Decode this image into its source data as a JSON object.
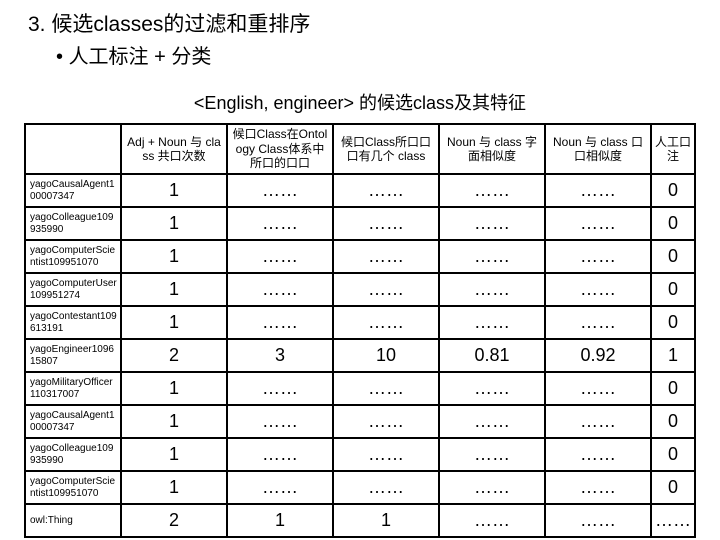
{
  "heading": "3. 候选classes的过滤和重排序",
  "bullet": "人工标注  + 分类",
  "subtitle": "<English, engineer> 的候选class及其特征",
  "columns": [
    "",
    "Adj + Noun 与 class 共口次数",
    "候口Class在Ontology Class体系中所口的口口",
    "候口Class所口口口有几个 class",
    "Noun 与 class 字面相似度",
    "Noun 与 class 口口相似度",
    "人工口注"
  ],
  "rows": [
    {
      "label": "yagoCausalAgent100007347",
      "c1": "1",
      "c2": "……",
      "c3": "……",
      "c4": "……",
      "c5": "……",
      "c6": "0"
    },
    {
      "label": "yagoColleague109935990",
      "c1": "1",
      "c2": "……",
      "c3": "……",
      "c4": "……",
      "c5": "……",
      "c6": "0"
    },
    {
      "label": "yagoComputerScientist109951070",
      "c1": "1",
      "c2": "……",
      "c3": "……",
      "c4": "……",
      "c5": "……",
      "c6": "0"
    },
    {
      "label": "yagoComputerUser109951274",
      "c1": "1",
      "c2": "……",
      "c3": "……",
      "c4": "……",
      "c5": "……",
      "c6": "0"
    },
    {
      "label": "yagoContestant109613191",
      "c1": "1",
      "c2": "……",
      "c3": "……",
      "c4": "……",
      "c5": "……",
      "c6": "0"
    },
    {
      "label": "yagoEngineer109615807",
      "c1": "2",
      "c2": "3",
      "c3": "10",
      "c4": "0.81",
      "c5": "0.92",
      "c6": "1"
    },
    {
      "label": "yagoMilitaryOfficer110317007",
      "c1": "1",
      "c2": "……",
      "c3": "……",
      "c4": "……",
      "c5": "……",
      "c6": "0"
    },
    {
      "label": "yagoCausalAgent100007347",
      "c1": "1",
      "c2": "……",
      "c3": "……",
      "c4": "……",
      "c5": "……",
      "c6": "0"
    },
    {
      "label": "yagoColleague109935990",
      "c1": "1",
      "c2": "……",
      "c3": "……",
      "c4": "……",
      "c5": "……",
      "c6": "0"
    },
    {
      "label": "yagoComputerScientist109951070",
      "c1": "1",
      "c2": "……",
      "c3": "……",
      "c4": "……",
      "c5": "……",
      "c6": "0"
    },
    {
      "label": "owl:Thing",
      "c1": "2",
      "c2": "1",
      "c3": "1",
      "c4": "……",
      "c5": "……",
      "c6": "……"
    }
  ]
}
